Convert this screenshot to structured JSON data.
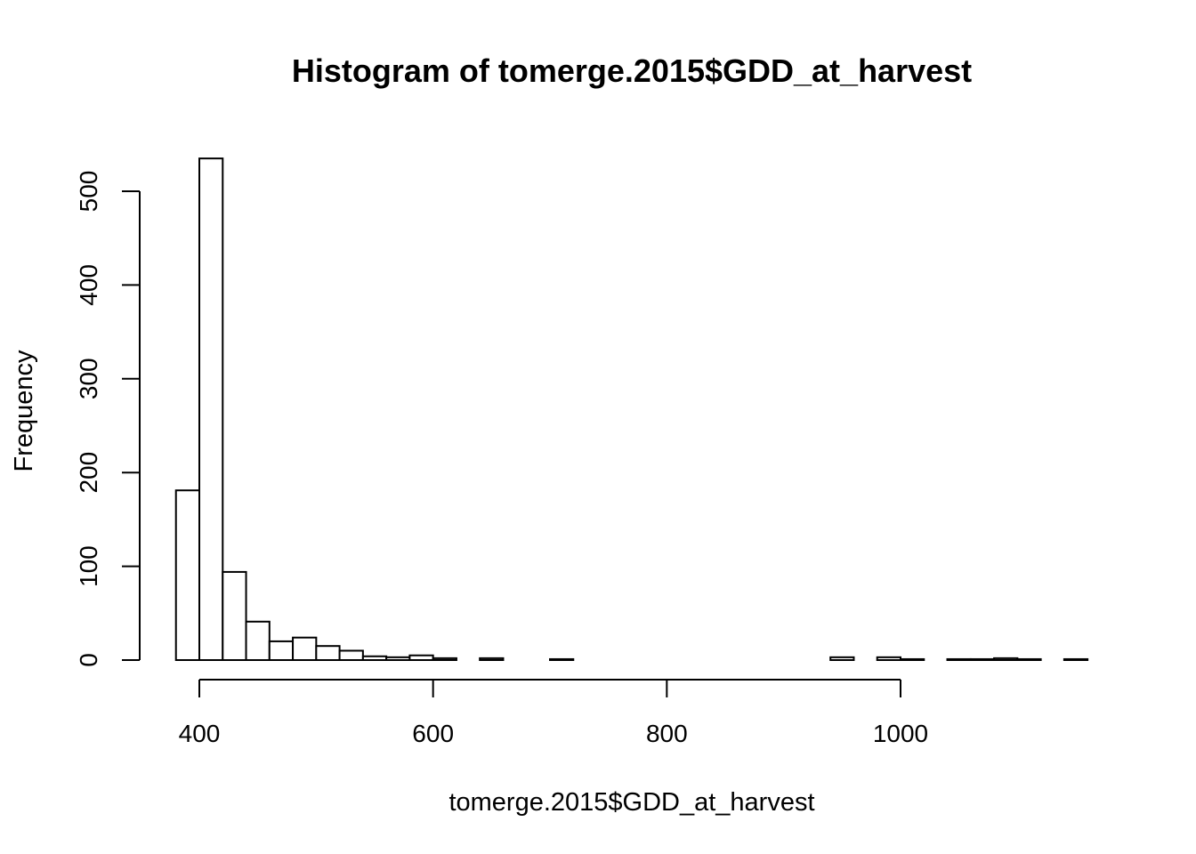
{
  "chart_data": {
    "type": "bar",
    "title": "Histogram of tomerge.2015$GDD_at_harvest",
    "xlabel": "tomerge.2015$GDD_at_harvest",
    "ylabel": "Frequency",
    "xlim": [
      380,
      1160
    ],
    "ylim": [
      0,
      540
    ],
    "xticks": [
      400,
      600,
      800,
      1000
    ],
    "yticks": [
      0,
      100,
      200,
      300,
      400,
      500
    ],
    "grid": false,
    "bin_width": 20,
    "bins_start": [
      380,
      400,
      420,
      440,
      460,
      480,
      500,
      520,
      540,
      560,
      580,
      600,
      620,
      640,
      660,
      680,
      700,
      720,
      740,
      760,
      780,
      800,
      820,
      840,
      860,
      880,
      900,
      920,
      940,
      960,
      980,
      1000,
      1020,
      1040,
      1060,
      1080,
      1100,
      1120,
      1140
    ],
    "values": [
      181,
      535,
      94,
      41,
      20,
      24,
      15,
      10,
      4,
      3,
      5,
      2,
      0,
      2,
      0,
      0,
      1,
      0,
      0,
      0,
      0,
      0,
      0,
      0,
      0,
      0,
      0,
      0,
      3,
      0,
      3,
      1,
      0,
      1,
      1,
      2,
      1,
      0,
      1
    ]
  }
}
